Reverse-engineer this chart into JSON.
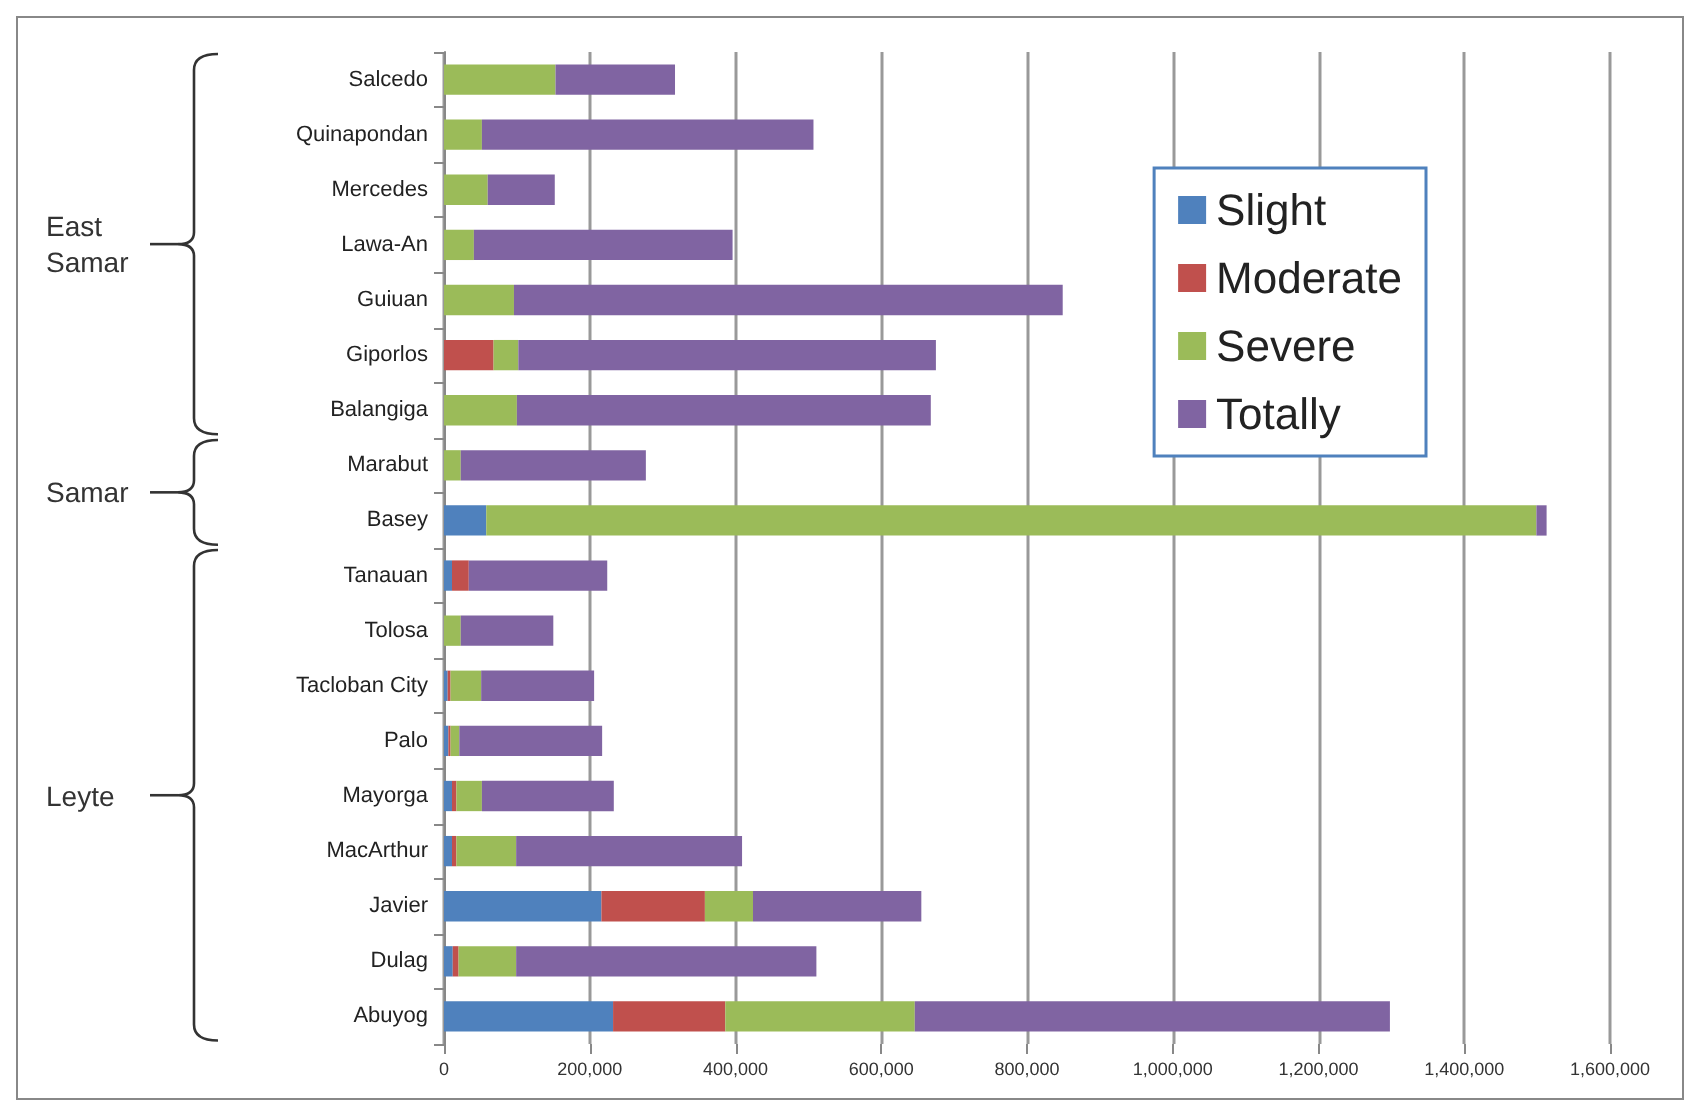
{
  "chart_data": {
    "type": "bar",
    "orientation": "horizontal",
    "stacked": true,
    "categories": [
      "Salcedo",
      "Quinapondan",
      "Mercedes",
      "Lawa-An",
      "Guiuan",
      "Giporlos",
      "Balangiga",
      "Marabut",
      "Basey",
      "Tanauan",
      "Tolosa",
      "Tacloban City",
      "Palo",
      "Mayorga",
      "MacArthur",
      "Javier",
      "Dulag",
      "Abuyog"
    ],
    "series": [
      {
        "name": "Slight",
        "color": "#4f81bd",
        "values": [
          null,
          null,
          null,
          null,
          null,
          null,
          null,
          null,
          58000,
          11000,
          null,
          5000,
          6000,
          11000,
          11000,
          216000,
          12000,
          232000
        ]
      },
      {
        "name": "Moderate",
        "color": "#c0504d",
        "values": [
          null,
          null,
          null,
          null,
          null,
          68000,
          null,
          null,
          null,
          23000,
          null,
          4000,
          3000,
          6000,
          6000,
          142000,
          8000,
          154000
        ]
      },
      {
        "name": "Severe",
        "color": "#9bbb59",
        "values": [
          153000,
          52000,
          60000,
          41000,
          96000,
          34000,
          100000,
          23000,
          1441000,
          null,
          23000,
          42000,
          12000,
          35000,
          82000,
          66000,
          79000,
          260000
        ]
      },
      {
        "name": "Totally",
        "color": "#8064a2",
        "values": [
          164000,
          455000,
          92000,
          355000,
          753000,
          573000,
          568000,
          254000,
          14000,
          190000,
          127000,
          155000,
          196000,
          181000,
          310000,
          231000,
          412000,
          652000
        ]
      }
    ],
    "xlim": [
      0,
      1600000
    ],
    "xticks": [
      0,
      {
        "value": 200000,
        "label": "200,000"
      },
      {
        "value": 400000,
        "label": "400,000"
      },
      {
        "value": 600000,
        "label": "600,000"
      },
      {
        "value": 800000,
        "label": "800,000"
      },
      {
        "value": 1000000,
        "label": "1,000,000"
      },
      {
        "value": 1200000,
        "label": "1,200,000"
      },
      {
        "value": 1400000,
        "label": "1,400,000"
      },
      {
        "value": 1600000,
        "label": "1,600,000"
      }
    ],
    "grid": "x",
    "legend": "top right",
    "annotations": [
      "East Samar",
      "Samar",
      "Leyte"
    ]
  }
}
